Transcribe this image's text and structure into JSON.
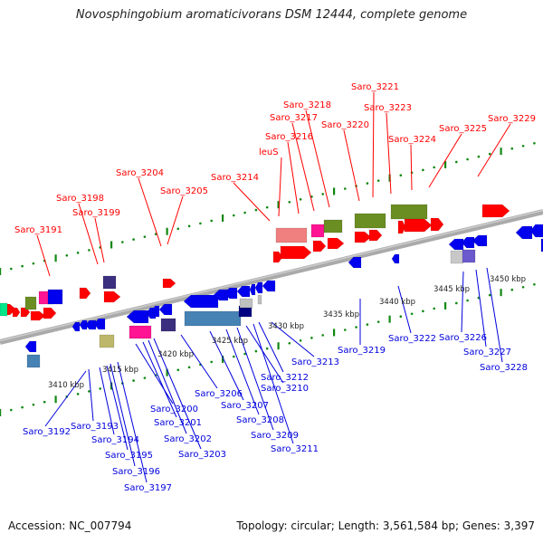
{
  "title": "Novosphingobium aromaticivorans DSM 12444, complete genome",
  "footer": {
    "accession": "Accession: NC_007794",
    "summary": "Topology: circular; Length: 3,561,584 bp; Genes: 3,397"
  },
  "colors": {
    "forward_label": "#ff0000",
    "reverse_label": "#0000dd",
    "backbone": "#888888",
    "ticks": "#118811"
  },
  "kbp_markers": [
    "3410 kbp",
    "3415 kbp",
    "3420 kbp",
    "3425 kbp",
    "3430 kbp",
    "3435 kbp",
    "3440 kbp",
    "3445 kbp",
    "3450 kbp"
  ],
  "forward_labels": [
    "Saro_3191",
    "Saro_3198",
    "Saro_3199",
    "Saro_3204",
    "Saro_3205",
    "Saro_3214",
    "leuS",
    "Saro_3216",
    "Saro_3217",
    "Saro_3218",
    "Saro_3220",
    "Saro_3221",
    "Saro_3223",
    "Saro_3224",
    "Saro_3225",
    "Saro_3229"
  ],
  "reverse_labels": [
    "Saro_3192",
    "Saro_3193",
    "Saro_3194",
    "Saro_3195",
    "Saro_3196",
    "Saro_3197",
    "Saro_3200",
    "Saro_3201",
    "Saro_3202",
    "Saro_3203",
    "Saro_3206",
    "Saro_3207",
    "Saro_3208",
    "Saro_3209",
    "Saro_3210",
    "Saro_3211",
    "Saro_3212",
    "Saro_3213",
    "Saro_3219",
    "Saro_3222",
    "Saro_3226",
    "Saro_3227",
    "Saro_3228"
  ]
}
